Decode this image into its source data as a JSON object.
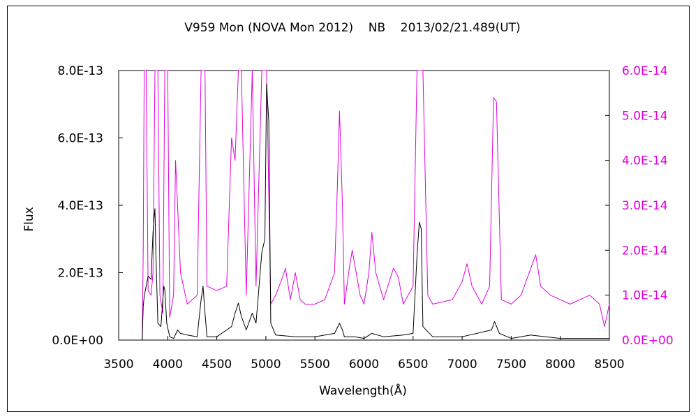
{
  "chart_data": {
    "type": "line",
    "title": "V959 Mon (NOVA Mon 2012)    NB    2013/02/21.489(UT)",
    "xlabel": "Wavelength(Å)",
    "ylabel": "Flux",
    "xlim": [
      3500,
      8500
    ],
    "ylim_left": [
      0,
      8e-13
    ],
    "ylim_right": [
      0,
      6e-14
    ],
    "x_ticks": [
      "3500",
      "4000",
      "4500",
      "5000",
      "5500",
      "6000",
      "6500",
      "7000",
      "7500",
      "8000",
      "8500"
    ],
    "y_ticks_left": [
      "0.0E+00",
      "2.0E-13",
      "4.0E-13",
      "6.0E-13",
      "8.0E-13"
    ],
    "y_ticks_right": [
      "0.0E+00",
      "1.0E-14",
      "2.0E-14",
      "3.0E-14",
      "4.0E-14",
      "5.0E-14",
      "6.0E-14"
    ],
    "colors": {
      "left_series": "#000000",
      "right_series": "#e000e0",
      "axes": "#000000"
    },
    "series": [
      {
        "axis": "left",
        "color": "#000000",
        "points": [
          [
            3740,
            0
          ],
          [
            3750,
            1e-13
          ],
          [
            3760,
            1.3e-13
          ],
          [
            3780,
            1.6e-13
          ],
          [
            3800,
            1.9e-13
          ],
          [
            3830,
            1.8e-13
          ],
          [
            3850,
            3.2e-13
          ],
          [
            3860,
            3.6e-13
          ],
          [
            3870,
            3.9e-13
          ],
          [
            3880,
            2.5e-13
          ],
          [
            3900,
            5e-14
          ],
          [
            3930,
            4e-14
          ],
          [
            3960,
            1.6e-13
          ],
          [
            3970,
            1.5e-13
          ],
          [
            3990,
            5e-14
          ],
          [
            4020,
            1e-14
          ],
          [
            4060,
            5e-15
          ],
          [
            4100,
            3e-14
          ],
          [
            4130,
            2e-14
          ],
          [
            4200,
            1.5e-14
          ],
          [
            4300,
            1e-14
          ],
          [
            4340,
            1.2e-13
          ],
          [
            4360,
            1.6e-13
          ],
          [
            4380,
            8e-14
          ],
          [
            4400,
            1e-14
          ],
          [
            4500,
            1e-14
          ],
          [
            4600,
            3e-14
          ],
          [
            4650,
            4e-14
          ],
          [
            4686,
            8e-14
          ],
          [
            4720,
            1.1e-13
          ],
          [
            4750,
            7e-14
          ],
          [
            4800,
            3e-14
          ],
          [
            4861,
            8e-14
          ],
          [
            4900,
            5e-14
          ],
          [
            4959,
            2.6e-13
          ],
          [
            4990,
            3e-13
          ],
          [
            5007,
            7.6e-13
          ],
          [
            5030,
            6.5e-13
          ],
          [
            5050,
            5e-14
          ],
          [
            5100,
            1.5e-14
          ],
          [
            5300,
            1e-14
          ],
          [
            5500,
            1e-14
          ],
          [
            5700,
            2e-14
          ],
          [
            5750,
            5e-14
          ],
          [
            5780,
            3e-14
          ],
          [
            5800,
            1e-14
          ],
          [
            5900,
            1e-14
          ],
          [
            6000,
            5e-15
          ],
          [
            6080,
            2e-14
          ],
          [
            6200,
            1e-14
          ],
          [
            6400,
            1.5e-14
          ],
          [
            6500,
            2e-14
          ],
          [
            6540,
            2.5e-13
          ],
          [
            6563,
            3.5e-13
          ],
          [
            6583,
            3.3e-13
          ],
          [
            6600,
            4e-14
          ],
          [
            6700,
            1e-14
          ],
          [
            7000,
            1e-14
          ],
          [
            7300,
            3e-14
          ],
          [
            7330,
            5.5e-14
          ],
          [
            7380,
            2e-14
          ],
          [
            7500,
            5e-15
          ],
          [
            7700,
            1.5e-14
          ],
          [
            8000,
            5e-15
          ],
          [
            8500,
            5e-15
          ]
        ]
      },
      {
        "axis": "right",
        "color": "#e000e0",
        "points": [
          [
            3740,
            0
          ],
          [
            3750,
            2e-14
          ],
          [
            3760,
            6e-14
          ],
          [
            3780,
            6e-14
          ],
          [
            3800,
            1.1e-14
          ],
          [
            3830,
            1e-14
          ],
          [
            3850,
            1.5e-14
          ],
          [
            3870,
            6e-14
          ],
          [
            3900,
            6e-14
          ],
          [
            3920,
            1e-14
          ],
          [
            3950,
            6e-15
          ],
          [
            3970,
            6e-14
          ],
          [
            4000,
            6e-14
          ],
          [
            4020,
            5e-15
          ],
          [
            4060,
            1e-14
          ],
          [
            4080,
            4e-14
          ],
          [
            4100,
            3e-14
          ],
          [
            4130,
            1.5e-14
          ],
          [
            4200,
            8e-15
          ],
          [
            4300,
            1e-14
          ],
          [
            4340,
            6e-14
          ],
          [
            4380,
            6e-14
          ],
          [
            4400,
            1.2e-14
          ],
          [
            4500,
            1.1e-14
          ],
          [
            4600,
            1.2e-14
          ],
          [
            4650,
            4.5e-14
          ],
          [
            4686,
            4e-14
          ],
          [
            4720,
            6e-14
          ],
          [
            4750,
            6e-14
          ],
          [
            4800,
            1e-14
          ],
          [
            4861,
            6e-14
          ],
          [
            4900,
            1.2e-14
          ],
          [
            4959,
            6e-14
          ],
          [
            5007,
            6e-14
          ],
          [
            5050,
            8e-15
          ],
          [
            5100,
            1e-14
          ],
          [
            5170,
            1.4e-14
          ],
          [
            5200,
            1.6e-14
          ],
          [
            5250,
            9e-15
          ],
          [
            5300,
            1.5e-14
          ],
          [
            5350,
            9e-15
          ],
          [
            5400,
            8e-15
          ],
          [
            5500,
            8e-15
          ],
          [
            5600,
            9e-15
          ],
          [
            5700,
            1.5e-14
          ],
          [
            5730,
            3.5e-14
          ],
          [
            5750,
            5.1e-14
          ],
          [
            5780,
            3e-14
          ],
          [
            5800,
            8e-15
          ],
          [
            5850,
            1.6e-14
          ],
          [
            5880,
            2e-14
          ],
          [
            5920,
            1.5e-14
          ],
          [
            5960,
            1e-14
          ],
          [
            6000,
            8e-15
          ],
          [
            6050,
            1.5e-14
          ],
          [
            6080,
            2.4e-14
          ],
          [
            6120,
            1.5e-14
          ],
          [
            6200,
            9e-15
          ],
          [
            6300,
            1.6e-14
          ],
          [
            6350,
            1.4e-14
          ],
          [
            6400,
            8e-15
          ],
          [
            6500,
            1.2e-14
          ],
          [
            6540,
            6e-14
          ],
          [
            6600,
            6e-14
          ],
          [
            6650,
            1e-14
          ],
          [
            6700,
            8e-15
          ],
          [
            6900,
            9e-15
          ],
          [
            7000,
            1.3e-14
          ],
          [
            7050,
            1.7e-14
          ],
          [
            7100,
            1.2e-14
          ],
          [
            7200,
            8e-15
          ],
          [
            7280,
            1.2e-14
          ],
          [
            7320,
            5.4e-14
          ],
          [
            7350,
            5.3e-14
          ],
          [
            7400,
            9e-15
          ],
          [
            7500,
            8e-15
          ],
          [
            7600,
            1e-14
          ],
          [
            7700,
            1.6e-14
          ],
          [
            7750,
            1.9e-14
          ],
          [
            7800,
            1.2e-14
          ],
          [
            7900,
            1e-14
          ],
          [
            8000,
            9e-15
          ],
          [
            8100,
            8e-15
          ],
          [
            8200,
            9e-15
          ],
          [
            8300,
            1e-14
          ],
          [
            8400,
            8e-15
          ],
          [
            8450,
            3e-15
          ],
          [
            8500,
            8e-15
          ]
        ]
      }
    ]
  }
}
